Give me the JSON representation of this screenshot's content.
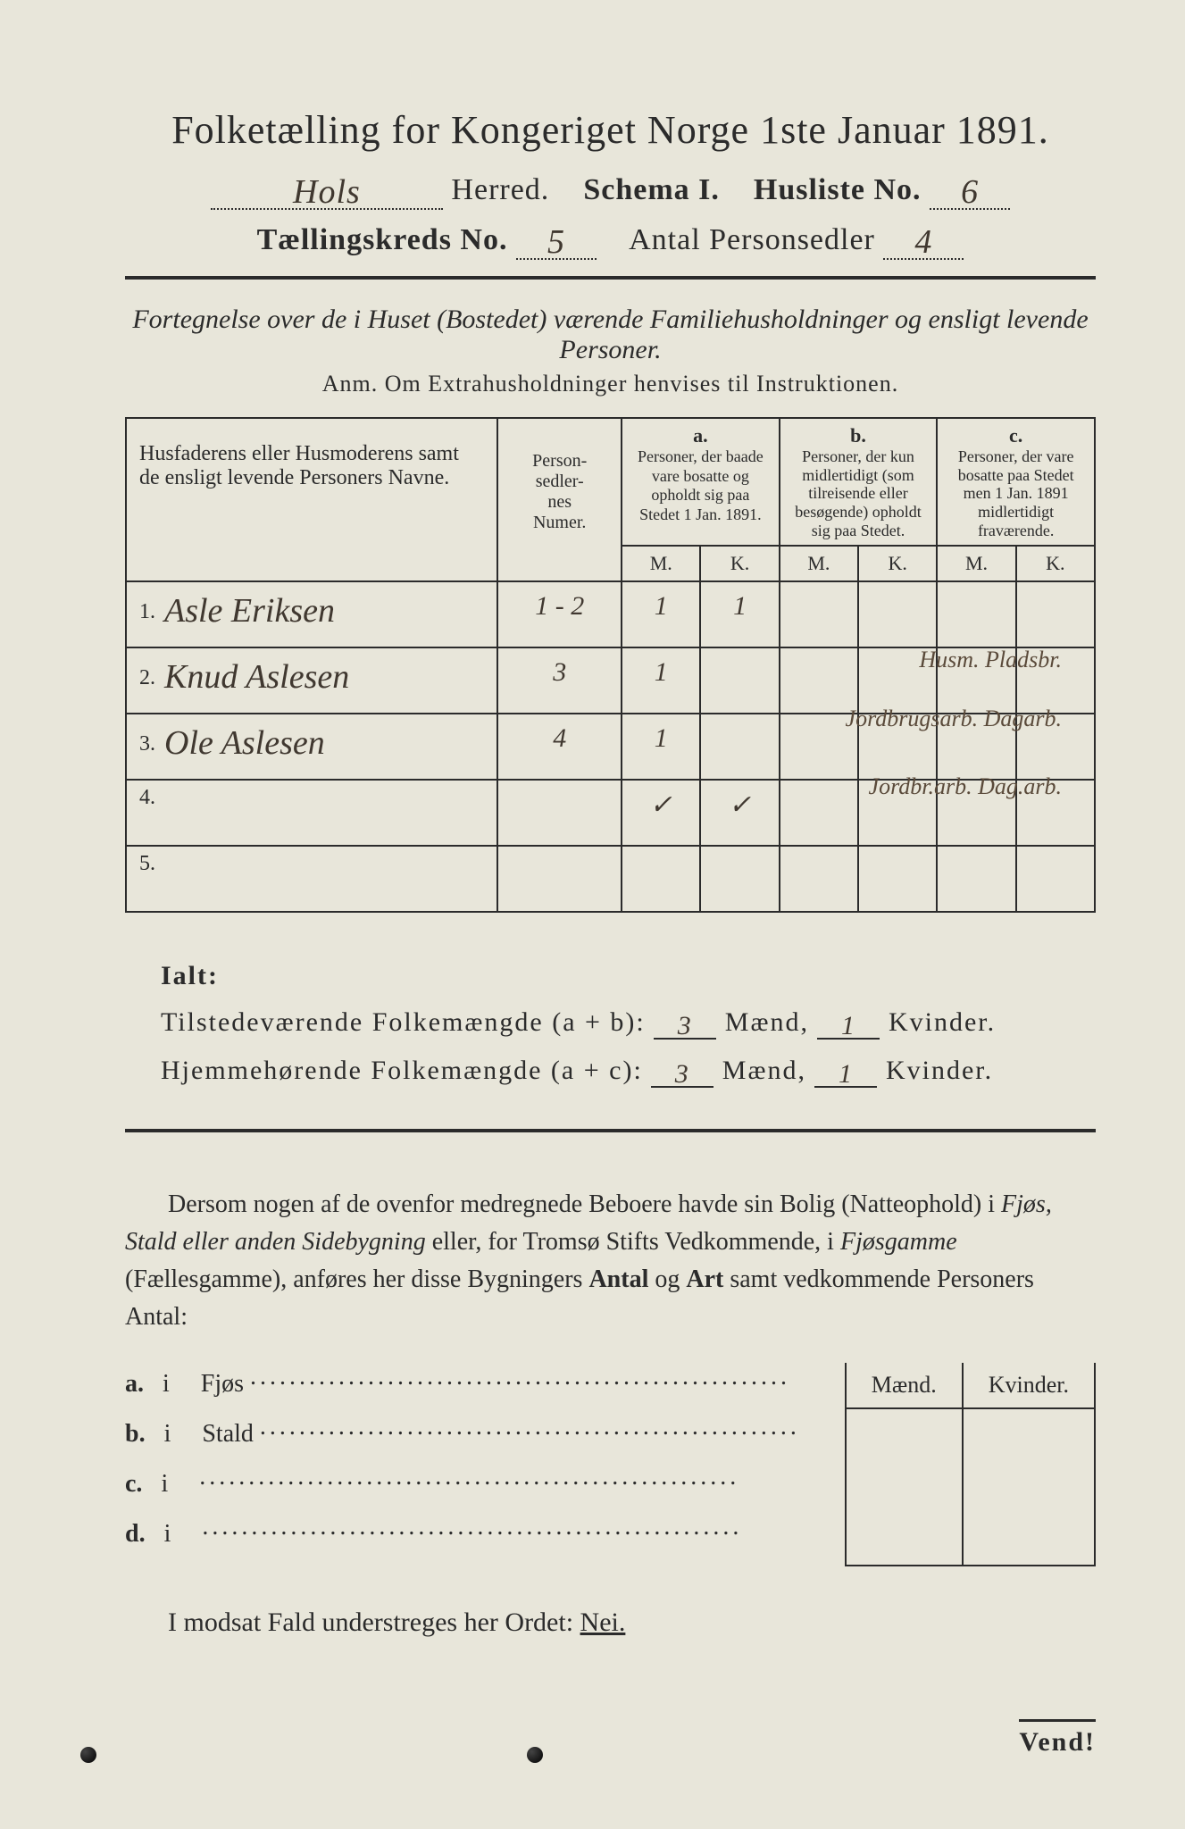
{
  "header": {
    "title": "Folketælling for Kongeriget Norge 1ste Januar 1891.",
    "herred_hand": "Hols",
    "herred_label": "Herred.",
    "schema_label": "Schema I.",
    "husliste_label": "Husliste No.",
    "husliste_no_hand": "6",
    "kreds_label": "Tællingskreds No.",
    "kreds_no_hand": "5",
    "antal_label": "Antal Personsedler",
    "antal_hand": "4"
  },
  "subtitles": {
    "s1": "Fortegnelse over de i Huset (Bostedet) værende Familiehusholdninger og ensligt levende Personer.",
    "s2": "Anm. Om Extrahusholdninger henvises til Instruktionen."
  },
  "table": {
    "col_names_header": "Husfaderens eller Husmoderens samt de ensligt levende Personers Navne.",
    "col_numer_header": "Person-\nsedler-\nnes\nNumer.",
    "group_a_top": "a.",
    "group_a": "Personer, der baade vare bosatte og opholdt sig paa Stedet 1 Jan. 1891.",
    "group_b_top": "b.",
    "group_b": "Personer, der kun midlertidigt (som tilreisende eller besøgende) opholdt sig paa Stedet.",
    "group_c_top": "c.",
    "group_c": "Personer, der vare bosatte paa Stedet men 1 Jan. 1891 midlertidigt fraværende.",
    "M": "M.",
    "K": "K.",
    "rows": [
      {
        "idx": "1.",
        "name": "Asle Eriksen",
        "numer": "1 - 2",
        "aM": "1",
        "aK": "1",
        "bM": "",
        "bK": "",
        "cM": "",
        "cK": "",
        "note": "Husm. Pladsbr."
      },
      {
        "idx": "2.",
        "name": "Knud Aslesen",
        "numer": "3",
        "aM": "1",
        "aK": "",
        "bM": "",
        "bK": "",
        "cM": "",
        "cK": "",
        "note": "Jordbrugsarb. Dagarb."
      },
      {
        "idx": "3.",
        "name": "Ole Aslesen",
        "numer": "4",
        "aM": "1",
        "aK": "",
        "bM": "",
        "bK": "",
        "cM": "",
        "cK": "",
        "note": "Jordbr.arb. Dag.arb."
      },
      {
        "idx": "4.",
        "name": "",
        "numer": "",
        "aM": "✓",
        "aK": "✓",
        "bM": "",
        "bK": "",
        "cM": "",
        "cK": "",
        "note": ""
      },
      {
        "idx": "5.",
        "name": "",
        "numer": "",
        "aM": "",
        "aK": "",
        "bM": "",
        "bK": "",
        "cM": "",
        "cK": "",
        "note": ""
      }
    ]
  },
  "totals": {
    "ialt_label": "Ialt:",
    "line1_label": "Tilstedeværende Folkemængde (a + b):",
    "line1_M": "3",
    "line1_K": "1",
    "line2_label": "Hjemmehørende Folkemængde (a + c):",
    "line2_M": "3",
    "line2_K": "1",
    "maend": "Mænd,",
    "kvinder": "Kvinder."
  },
  "para": {
    "text_before": "Dersom nogen af de ovenfor medregnede Beboere havde sin Bolig (Natteophold) i ",
    "ital1": "Fjøs, Stald eller anden Sidebygning",
    "mid": " eller, for Tromsø Stifts Vedkommende, i ",
    "ital2": "Fjøsgamme",
    "paren": " (Fællesgamme), anføres her disse Bygningers ",
    "bold1": "Antal",
    "and": " og ",
    "bold2": "Art",
    "tail": " samt vedkommende Personers Antal:"
  },
  "buildings": {
    "rows": [
      {
        "k": "a.",
        "i": "i",
        "label": "Fjøs"
      },
      {
        "k": "b.",
        "i": "i",
        "label": "Stald"
      },
      {
        "k": "c.",
        "i": "i",
        "label": ""
      },
      {
        "k": "d.",
        "i": "i",
        "label": ""
      }
    ],
    "maend": "Mænd.",
    "kvinder": "Kvinder."
  },
  "nei": {
    "prefix": "I modsat Fald understreges her Ordet: ",
    "word": "Nei."
  },
  "vend": "Vend!",
  "style": {
    "page_bg": "#e8e6da",
    "ink": "#2b2b2b",
    "hand_ink": "#403830"
  }
}
